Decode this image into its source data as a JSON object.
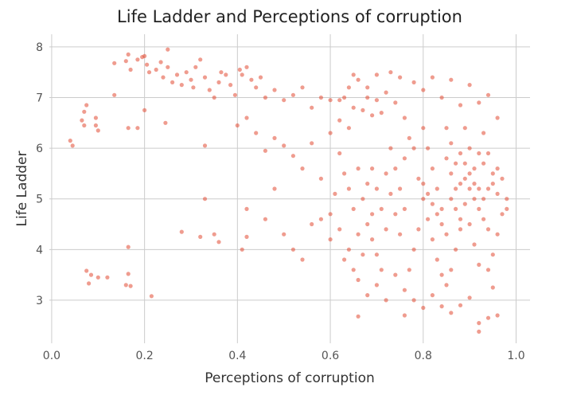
{
  "chart_data": {
    "type": "scatter",
    "title": "Life Ladder and Perceptions of corruption",
    "xlabel": "Perceptions of corruption",
    "ylabel": "Life Ladder",
    "xlim": [
      -0.005,
      1.03
    ],
    "ylim": [
      2.15,
      8.25
    ],
    "xticks": [
      0.0,
      0.2,
      0.4,
      0.6,
      0.8,
      1.0
    ],
    "xtick_labels": [
      "0.0",
      "0.2",
      "0.4",
      "0.6",
      "0.8",
      "1.0"
    ],
    "yticks": [
      3,
      4,
      5,
      6,
      7,
      8
    ],
    "ytick_labels": [
      "3",
      "4",
      "5",
      "6",
      "7",
      "8"
    ],
    "grid": true,
    "legend": "none",
    "marker_color": "#e24a33",
    "series": [
      {
        "points": [
          [
            0.04,
            6.15
          ],
          [
            0.045,
            6.05
          ],
          [
            0.065,
            6.55
          ],
          [
            0.07,
            6.72
          ],
          [
            0.07,
            6.45
          ],
          [
            0.075,
            6.85
          ],
          [
            0.095,
            6.6
          ],
          [
            0.095,
            6.45
          ],
          [
            0.1,
            6.35
          ],
          [
            0.135,
            7.05
          ],
          [
            0.135,
            7.68
          ],
          [
            0.16,
            7.72
          ],
          [
            0.165,
            7.85
          ],
          [
            0.17,
            7.55
          ],
          [
            0.185,
            7.75
          ],
          [
            0.195,
            7.8
          ],
          [
            0.2,
            7.82
          ],
          [
            0.205,
            7.65
          ],
          [
            0.21,
            7.5
          ],
          [
            0.225,
            7.55
          ],
          [
            0.235,
            7.7
          ],
          [
            0.24,
            7.4
          ],
          [
            0.25,
            7.6
          ],
          [
            0.25,
            7.95
          ],
          [
            0.26,
            7.3
          ],
          [
            0.27,
            7.45
          ],
          [
            0.28,
            7.25
          ],
          [
            0.29,
            7.5
          ],
          [
            0.3,
            7.35
          ],
          [
            0.305,
            7.2
          ],
          [
            0.31,
            7.6
          ],
          [
            0.32,
            7.75
          ],
          [
            0.33,
            7.4
          ],
          [
            0.34,
            7.15
          ],
          [
            0.35,
            7.0
          ],
          [
            0.36,
            7.3
          ],
          [
            0.365,
            7.5
          ],
          [
            0.375,
            7.45
          ],
          [
            0.385,
            7.25
          ],
          [
            0.395,
            7.05
          ],
          [
            0.405,
            7.55
          ],
          [
            0.41,
            7.45
          ],
          [
            0.42,
            7.6
          ],
          [
            0.43,
            7.35
          ],
          [
            0.44,
            7.2
          ],
          [
            0.45,
            7.4
          ],
          [
            0.46,
            7.0
          ],
          [
            0.48,
            7.15
          ],
          [
            0.5,
            6.95
          ],
          [
            0.52,
            7.05
          ],
          [
            0.54,
            7.2
          ],
          [
            0.56,
            6.8
          ],
          [
            0.58,
            7.0
          ],
          [
            0.6,
            6.95
          ],
          [
            0.165,
            6.4
          ],
          [
            0.185,
            6.4
          ],
          [
            0.2,
            6.75
          ],
          [
            0.245,
            6.5
          ],
          [
            0.33,
            6.05
          ],
          [
            0.4,
            6.45
          ],
          [
            0.42,
            6.6
          ],
          [
            0.44,
            6.3
          ],
          [
            0.46,
            5.95
          ],
          [
            0.48,
            6.2
          ],
          [
            0.5,
            6.05
          ],
          [
            0.52,
            5.85
          ],
          [
            0.54,
            5.6
          ],
          [
            0.56,
            6.1
          ],
          [
            0.58,
            5.4
          ],
          [
            0.6,
            6.3
          ],
          [
            0.33,
            5.0
          ],
          [
            0.42,
            4.8
          ],
          [
            0.46,
            4.6
          ],
          [
            0.48,
            5.2
          ],
          [
            0.5,
            4.3
          ],
          [
            0.52,
            4.0
          ],
          [
            0.54,
            3.8
          ],
          [
            0.56,
            4.5
          ],
          [
            0.58,
            4.6
          ],
          [
            0.6,
            4.2
          ],
          [
            0.165,
            4.05
          ],
          [
            0.28,
            4.35
          ],
          [
            0.32,
            4.25
          ],
          [
            0.35,
            4.3
          ],
          [
            0.36,
            4.15
          ],
          [
            0.41,
            4.0
          ],
          [
            0.42,
            4.25
          ],
          [
            0.075,
            3.58
          ],
          [
            0.085,
            3.5
          ],
          [
            0.1,
            3.45
          ],
          [
            0.12,
            3.45
          ],
          [
            0.165,
            3.52
          ],
          [
            0.16,
            3.3
          ],
          [
            0.17,
            3.28
          ],
          [
            0.08,
            3.33
          ],
          [
            0.215,
            3.08
          ],
          [
            0.66,
            2.68
          ],
          [
            0.76,
            2.7
          ],
          [
            0.8,
            2.85
          ],
          [
            0.84,
            2.88
          ],
          [
            0.86,
            2.75
          ],
          [
            0.92,
            2.55
          ],
          [
            0.94,
            2.65
          ],
          [
            0.96,
            2.7
          ],
          [
            0.92,
            2.38
          ],
          [
            0.88,
            2.9
          ],
          [
            0.82,
            3.1
          ],
          [
            0.78,
            3.0
          ],
          [
            0.9,
            3.05
          ],
          [
            0.95,
            3.25
          ],
          [
            0.62,
            6.55
          ],
          [
            0.62,
            6.95
          ],
          [
            0.63,
            7.0
          ],
          [
            0.64,
            6.4
          ],
          [
            0.64,
            7.2
          ],
          [
            0.65,
            7.45
          ],
          [
            0.65,
            6.8
          ],
          [
            0.66,
            7.35
          ],
          [
            0.67,
            6.75
          ],
          [
            0.68,
            7.2
          ],
          [
            0.68,
            7.0
          ],
          [
            0.69,
            6.65
          ],
          [
            0.7,
            7.45
          ],
          [
            0.7,
            6.95
          ],
          [
            0.71,
            6.7
          ],
          [
            0.72,
            7.1
          ],
          [
            0.73,
            7.5
          ],
          [
            0.74,
            6.9
          ],
          [
            0.75,
            7.4
          ],
          [
            0.76,
            6.6
          ],
          [
            0.78,
            7.3
          ],
          [
            0.8,
            7.15
          ],
          [
            0.82,
            7.4
          ],
          [
            0.84,
            7.0
          ],
          [
            0.86,
            7.35
          ],
          [
            0.88,
            6.85
          ],
          [
            0.9,
            7.25
          ],
          [
            0.92,
            6.9
          ],
          [
            0.94,
            7.05
          ],
          [
            0.96,
            6.6
          ],
          [
            0.62,
            5.9
          ],
          [
            0.63,
            5.5
          ],
          [
            0.64,
            5.2
          ],
          [
            0.65,
            4.8
          ],
          [
            0.66,
            5.6
          ],
          [
            0.67,
            5.0
          ],
          [
            0.68,
            4.5
          ],
          [
            0.69,
            4.2
          ],
          [
            0.7,
            3.9
          ],
          [
            0.71,
            3.6
          ],
          [
            0.66,
            3.4
          ],
          [
            0.68,
            3.1
          ],
          [
            0.7,
            3.3
          ],
          [
            0.72,
            3.0
          ],
          [
            0.74,
            3.5
          ],
          [
            0.76,
            3.2
          ],
          [
            0.72,
            5.5
          ],
          [
            0.73,
            5.1
          ],
          [
            0.74,
            4.7
          ],
          [
            0.75,
            4.3
          ],
          [
            0.76,
            5.8
          ],
          [
            0.77,
            6.2
          ],
          [
            0.78,
            6.0
          ],
          [
            0.79,
            5.4
          ],
          [
            0.8,
            5.0
          ],
          [
            0.81,
            4.6
          ],
          [
            0.82,
            4.2
          ],
          [
            0.83,
            3.8
          ],
          [
            0.84,
            3.5
          ],
          [
            0.85,
            6.4
          ],
          [
            0.86,
            6.1
          ],
          [
            0.87,
            5.7
          ],
          [
            0.88,
            5.3
          ],
          [
            0.89,
            4.9
          ],
          [
            0.9,
            4.5
          ],
          [
            0.91,
            4.1
          ],
          [
            0.92,
            3.7
          ],
          [
            0.93,
            6.3
          ],
          [
            0.94,
            5.9
          ],
          [
            0.95,
            5.5
          ],
          [
            0.96,
            5.1
          ],
          [
            0.97,
            4.7
          ],
          [
            0.96,
            4.3
          ],
          [
            0.95,
            3.9
          ],
          [
            0.94,
            3.6
          ],
          [
            0.93,
            5.0
          ],
          [
            0.92,
            5.2
          ],
          [
            0.91,
            5.6
          ],
          [
            0.9,
            6.0
          ],
          [
            0.89,
            6.4
          ],
          [
            0.88,
            4.4
          ],
          [
            0.87,
            4.0
          ],
          [
            0.86,
            3.6
          ],
          [
            0.85,
            3.3
          ],
          [
            0.84,
            4.8
          ],
          [
            0.83,
            5.2
          ],
          [
            0.82,
            5.6
          ],
          [
            0.81,
            6.0
          ],
          [
            0.8,
            6.4
          ],
          [
            0.79,
            4.4
          ],
          [
            0.78,
            4.0
          ],
          [
            0.77,
            3.6
          ],
          [
            0.76,
            4.8
          ],
          [
            0.75,
            5.2
          ],
          [
            0.74,
            5.6
          ],
          [
            0.73,
            6.0
          ],
          [
            0.72,
            4.4
          ],
          [
            0.71,
            4.8
          ],
          [
            0.7,
            5.2
          ],
          [
            0.69,
            5.6
          ],
          [
            0.8,
            5.3
          ],
          [
            0.81,
            5.1
          ],
          [
            0.82,
            4.9
          ],
          [
            0.83,
            4.7
          ],
          [
            0.84,
            4.5
          ],
          [
            0.85,
            4.3
          ],
          [
            0.86,
            5.0
          ],
          [
            0.87,
            4.8
          ],
          [
            0.88,
            4.6
          ],
          [
            0.89,
            5.4
          ],
          [
            0.9,
            5.2
          ],
          [
            0.91,
            5.0
          ],
          [
            0.92,
            4.8
          ],
          [
            0.93,
            4.6
          ],
          [
            0.94,
            4.4
          ],
          [
            0.95,
            5.3
          ],
          [
            0.96,
            5.6
          ],
          [
            0.97,
            5.4
          ],
          [
            0.98,
            5.0
          ],
          [
            0.98,
            4.8
          ],
          [
            0.85,
            5.8
          ],
          [
            0.86,
            5.5
          ],
          [
            0.87,
            5.2
          ],
          [
            0.88,
            5.9
          ],
          [
            0.89,
            5.7
          ],
          [
            0.9,
            5.5
          ],
          [
            0.91,
            5.3
          ],
          [
            0.92,
            5.9
          ],
          [
            0.93,
            5.7
          ],
          [
            0.94,
            5.2
          ],
          [
            0.6,
            4.7
          ],
          [
            0.61,
            5.1
          ],
          [
            0.62,
            4.4
          ],
          [
            0.63,
            3.8
          ],
          [
            0.64,
            4.0
          ],
          [
            0.65,
            3.6
          ],
          [
            0.66,
            4.3
          ],
          [
            0.67,
            3.9
          ],
          [
            0.68,
            5.3
          ],
          [
            0.69,
            4.7
          ]
        ]
      }
    ]
  }
}
